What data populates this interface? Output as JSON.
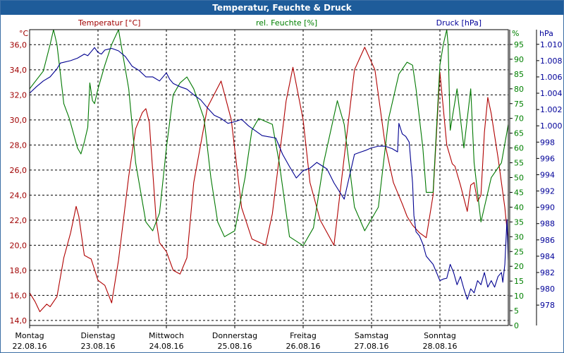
{
  "title": "Temperatur, Feuchte & Druck",
  "chart_data": {
    "type": "line",
    "title": "Temperatur, Feuchte & Druck",
    "grid": true,
    "x": {
      "range": [
        0,
        7
      ],
      "ticks": [
        {
          "pos": 0,
          "day": "Montag",
          "date": "22.08.16"
        },
        {
          "pos": 1,
          "day": "Dienstag",
          "date": "23.08.16"
        },
        {
          "pos": 2,
          "day": "Mittwoch",
          "date": "24.08.16"
        },
        {
          "pos": 3,
          "day": "Donnerstag",
          "date": "25.08.16"
        },
        {
          "pos": 4,
          "day": "Freitag",
          "date": "26.08.16"
        },
        {
          "pos": 5,
          "day": "Samstag",
          "date": "27.08.16"
        },
        {
          "pos": 6,
          "day": "Sonntag",
          "date": "28.08.16"
        }
      ]
    },
    "axes": {
      "temperature": {
        "label": "Temperatur [°C]",
        "unit": "°C",
        "range": [
          13.6,
          37.2
        ],
        "ticks": [
          "14,0",
          "16,0",
          "18,0",
          "20,0",
          "22,0",
          "24,0",
          "26,0",
          "28,0",
          "30,0",
          "32,0",
          "34,0",
          "36,0"
        ],
        "tick_values": [
          14,
          16,
          18,
          20,
          22,
          24,
          26,
          28,
          30,
          32,
          34,
          36
        ],
        "color": "#a00000"
      },
      "humidity": {
        "label": "rel. Feuchte [%]",
        "unit": "%",
        "range": [
          0,
          100
        ],
        "ticks": [
          "0",
          "5",
          "10",
          "15",
          "20",
          "25",
          "30",
          "35",
          "40",
          "45",
          "50",
          "55",
          "60",
          "65",
          "70",
          "75",
          "80",
          "85",
          "90",
          "95"
        ],
        "tick_values": [
          0,
          5,
          10,
          15,
          20,
          25,
          30,
          35,
          40,
          45,
          50,
          55,
          60,
          65,
          70,
          75,
          80,
          85,
          90,
          95
        ],
        "color": "#008000"
      },
      "pressure": {
        "label": "Druck [hPa]",
        "unit": "hPa",
        "range": [
          975.5,
          1011.8
        ],
        "ticks": [
          "978",
          "980",
          "982",
          "984",
          "986",
          "988",
          "990",
          "992",
          "994",
          "996",
          "998",
          "1.000",
          "1.002",
          "1.004",
          "1.006",
          "1.008",
          "1.010"
        ],
        "tick_values": [
          978,
          980,
          982,
          984,
          986,
          988,
          990,
          992,
          994,
          996,
          998,
          1000,
          1002,
          1004,
          1006,
          1008,
          1010
        ],
        "color": "#000099"
      }
    },
    "series": [
      {
        "name": "Temperatur",
        "axis": "temperature",
        "color": "#b00000",
        "x": [
          0,
          0.08,
          0.15,
          0.25,
          0.3,
          0.4,
          0.5,
          0.6,
          0.68,
          0.72,
          0.8,
          0.9,
          1.0,
          1.1,
          1.2,
          1.3,
          1.45,
          1.55,
          1.65,
          1.7,
          1.75,
          1.85,
          1.9,
          2.0,
          2.1,
          2.2,
          2.3,
          2.4,
          2.6,
          2.8,
          2.95,
          3.1,
          3.25,
          3.45,
          3.55,
          3.65,
          3.75,
          3.85,
          4.0,
          4.1,
          4.25,
          4.45,
          4.6,
          4.75,
          4.9,
          5.05,
          5.2,
          5.32,
          5.45,
          5.52,
          5.6,
          5.7,
          5.8,
          5.9,
          6.0,
          6.1,
          6.18,
          6.22,
          6.3,
          6.4,
          6.45,
          6.5,
          6.55,
          6.6,
          6.65,
          6.7,
          6.75,
          6.85,
          6.95,
          7.0
        ],
        "values": [
          16.2,
          15.5,
          14.7,
          15.3,
          15.1,
          15.9,
          19.0,
          21.0,
          23.1,
          22.3,
          19.2,
          18.9,
          17.2,
          16.8,
          15.4,
          18.8,
          25.5,
          29.3,
          30.6,
          30.9,
          29.8,
          22.0,
          20.2,
          19.5,
          18.0,
          17.7,
          19.0,
          25.0,
          31.0,
          33.1,
          30.0,
          23.0,
          20.5,
          20.0,
          22.5,
          27.0,
          31.5,
          34.2,
          30.0,
          25.0,
          22.0,
          20.0,
          27.0,
          34.0,
          35.8,
          34.0,
          28.0,
          25.0,
          23.3,
          22.3,
          21.6,
          21.0,
          20.6,
          24.0,
          33.8,
          28.0,
          26.5,
          26.3,
          24.8,
          22.7,
          24.8,
          25.0,
          23.5,
          24.0,
          29.0,
          31.8,
          30.5,
          27.0,
          23.0,
          20.2
        ]
      },
      {
        "name": "rel. Feuchte",
        "axis": "humidity",
        "color": "#007800",
        "x": [
          0,
          0.1,
          0.2,
          0.3,
          0.35,
          0.4,
          0.45,
          0.5,
          0.58,
          0.7,
          0.75,
          0.8,
          0.85,
          0.88,
          0.92,
          0.95,
          1.0,
          1.1,
          1.2,
          1.3,
          1.45,
          1.55,
          1.7,
          1.8,
          1.9,
          2.0,
          2.1,
          2.2,
          2.3,
          2.4,
          2.55,
          2.65,
          2.75,
          2.85,
          3.0,
          3.15,
          3.25,
          3.35,
          3.55,
          3.65,
          3.8,
          4.0,
          4.15,
          4.3,
          4.5,
          4.6,
          4.75,
          4.9,
          5.1,
          5.25,
          5.4,
          5.52,
          5.6,
          5.65,
          5.75,
          5.8,
          5.9,
          6.0,
          6.05,
          6.1,
          6.12,
          6.15,
          6.25,
          6.3,
          6.35,
          6.45,
          6.5,
          6.6,
          6.65,
          6.75,
          6.9,
          7.0
        ],
        "values": [
          80,
          83,
          86,
          95,
          100,
          95,
          85,
          75,
          70,
          60,
          58,
          62,
          67,
          82,
          76,
          75,
          80,
          88,
          95,
          100,
          80,
          55,
          35,
          32,
          38,
          60,
          78,
          82,
          84,
          80,
          70,
          50,
          35,
          30,
          32,
          50,
          66,
          70,
          68,
          55,
          30,
          27,
          33,
          55,
          76,
          68,
          40,
          32,
          40,
          70,
          85,
          89,
          88,
          80,
          60,
          45,
          45,
          88,
          95,
          100,
          95,
          66,
          80,
          70,
          60,
          80,
          55,
          35,
          40,
          50,
          55,
          68
        ]
      },
      {
        "name": "Druck",
        "axis": "pressure",
        "color": "#000090",
        "x": [
          0,
          0.1,
          0.2,
          0.3,
          0.4,
          0.45,
          0.5,
          0.6,
          0.7,
          0.8,
          0.85,
          0.9,
          0.95,
          1.0,
          1.05,
          1.1,
          1.15,
          1.2,
          1.3,
          1.4,
          1.5,
          1.6,
          1.7,
          1.8,
          1.9,
          2.0,
          2.05,
          2.1,
          2.2,
          2.3,
          2.4,
          2.5,
          2.6,
          2.7,
          2.8,
          2.9,
          3.0,
          3.1,
          3.2,
          3.4,
          3.6,
          3.7,
          3.8,
          3.9,
          4.0,
          4.1,
          4.2,
          4.35,
          4.45,
          4.6,
          4.75,
          4.85,
          4.92,
          5.0,
          5.1,
          5.2,
          5.3,
          5.38,
          5.4,
          5.45,
          5.5,
          5.55,
          5.6,
          5.62,
          5.65,
          5.7,
          5.75,
          5.8,
          5.9,
          6.0,
          6.05,
          6.1,
          6.15,
          6.2,
          6.25,
          6.3,
          6.35,
          6.4,
          6.45,
          6.5,
          6.55,
          6.6,
          6.65,
          6.7,
          6.75,
          6.8,
          6.85,
          6.9,
          6.92,
          6.95,
          6.98,
          7.0
        ],
        "values": [
          1004.0,
          1004.8,
          1005.5,
          1006.0,
          1007.0,
          1007.7,
          1007.8,
          1008.0,
          1008.3,
          1008.8,
          1008.6,
          1009.1,
          1009.6,
          1009.0,
          1008.8,
          1009.3,
          1009.4,
          1009.5,
          1009.2,
          1008.5,
          1007.3,
          1006.8,
          1006.0,
          1006.0,
          1005.5,
          1006.5,
          1005.7,
          1005.2,
          1004.8,
          1004.5,
          1003.8,
          1003.2,
          1002.2,
          1001.3,
          1000.9,
          1000.3,
          1000.5,
          1000.8,
          1000.0,
          998.8,
          998.5,
          996.5,
          995.0,
          993.6,
          994.5,
          994.8,
          995.5,
          994.7,
          993.0,
          991.0,
          996.5,
          996.8,
          997.0,
          997.3,
          997.5,
          997.5,
          997.2,
          996.8,
          1000.3,
          999.0,
          998.7,
          998.0,
          993.0,
          989.0,
          987.0,
          986.5,
          985.5,
          984.0,
          983.0,
          981.0,
          981.2,
          981.3,
          983.0,
          982.0,
          980.5,
          981.5,
          980.0,
          978.7,
          980.0,
          979.5,
          981.0,
          980.5,
          982.0,
          980.2,
          981.0,
          980.2,
          981.5,
          982.0,
          980.8,
          983.0,
          988.5,
          983.5
        ]
      }
    ]
  }
}
